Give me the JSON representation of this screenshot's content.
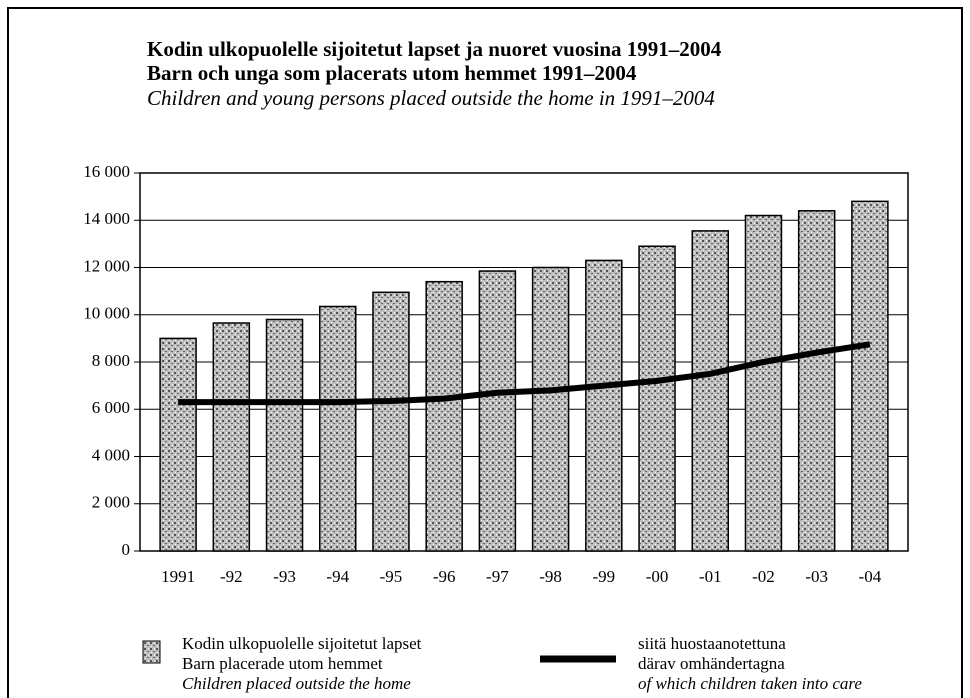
{
  "chart_data": {
    "type": "bar-line",
    "title": "Kodin ulkopuolelle sijoitetut lapset ja nuoret vuosina 1991–2004",
    "subtitle": "Barn och unga som placerats utom hemmet 1991–2004",
    "subtitle_en": "Children and young persons placed outside the home in 1991–2004",
    "categories": [
      "1991",
      "-92",
      "-93",
      "-94",
      "-95",
      "-96",
      "-97",
      "-98",
      "-99",
      "-00",
      "-01",
      "-02",
      "-03",
      "-04"
    ],
    "series": [
      {
        "name": [
          "Kodin ulkopuolelle sijoitetut lapset",
          "Barn placerade utom hemmet",
          "Children placed outside the home"
        ],
        "type": "bar",
        "color": "#8a8a8a",
        "values": [
          9000,
          9650,
          9800,
          10350,
          10950,
          11400,
          11850,
          12000,
          12300,
          12900,
          13550,
          14200,
          14400,
          14800
        ]
      },
      {
        "name": [
          "siitä huostaanotettuna",
          "därav omhändertagna",
          "of which children taken into care"
        ],
        "type": "line",
        "color": "#000000",
        "values": [
          6300,
          6300,
          6300,
          6300,
          6350,
          6450,
          6700,
          6800,
          7000,
          7200,
          7500,
          8000,
          8400,
          8750
        ]
      }
    ],
    "ylim": [
      0,
      16000
    ],
    "yticks": [
      0,
      {
        "value": 2000,
        "label": "2 000"
      },
      {
        "value": 4000,
        "label": "4 000"
      },
      {
        "value": 6000,
        "label": "6 000"
      },
      {
        "value": 8000,
        "label": "8 000"
      },
      {
        "value": 10000,
        "label": "10 000"
      },
      {
        "value": 12000,
        "label": "12 000"
      },
      {
        "value": 14000,
        "label": "14 000"
      },
      {
        "value": 16000,
        "label": "16 000"
      }
    ],
    "grid": true
  }
}
